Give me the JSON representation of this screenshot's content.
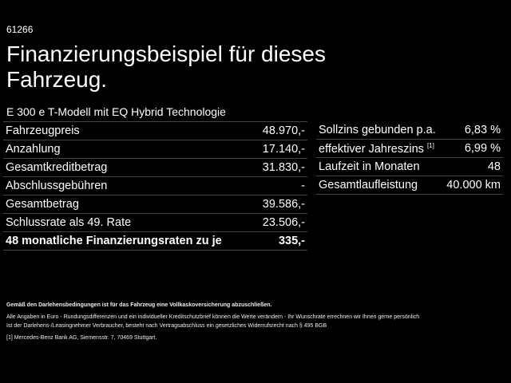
{
  "code": "61266",
  "title": "Finanzierungsbeispiel für dieses Fahrzeug.",
  "model": "E 300 e T-Modell mit EQ Hybrid Technologie",
  "left_rows": [
    {
      "label": "Fahrzeugpreis",
      "value": "48.970,-"
    },
    {
      "label": "Anzahlung",
      "value": "17.140,-"
    },
    {
      "label": "Gesamtkreditbetrag",
      "value": "31.830,-"
    },
    {
      "label": "Abschlussgebühren",
      "value": "-"
    },
    {
      "label": "Gesamtbetrag",
      "value": "39.586,-"
    },
    {
      "label": "Schlussrate als 49. Rate",
      "value": "23.506,-"
    },
    {
      "label": "48 monatliche Finanzierungsraten zu je",
      "value": "335,-"
    }
  ],
  "right_rows": [
    {
      "label": "Sollzins gebunden p.a.",
      "value": "6,83 %"
    },
    {
      "label": "effektiver Jahreszins",
      "sup": "[1]",
      "value": "6,99 %"
    },
    {
      "label": "Laufzeit in Monaten",
      "value": "48"
    },
    {
      "label": "Gesamtlaufleistung",
      "value": "40.000 km"
    }
  ],
  "footer": {
    "bold": "Gemäß den Darlehensbedingungen ist für das Fahrzeug eine Vollkaskoversicherung abzuschließen.",
    "line1": "Alle Angaben in Euro - Rundungsdifferenzen und ein individueller Kreditschutzbrief können die Werte verändern - Ihr Wunschrate errechnen wir Ihnen gerne persönlich",
    "line2": "Ist der Darlehens-/Leasingnehmer Verbraucher, besteht nach Vertragsabschluss ein gesetzliches Widerrufsrecht nach § 495 BGB",
    "note": "[1]  Mercedes-Benz Bank AG, Siemensstr. 7, 70469 Stuttgart."
  }
}
